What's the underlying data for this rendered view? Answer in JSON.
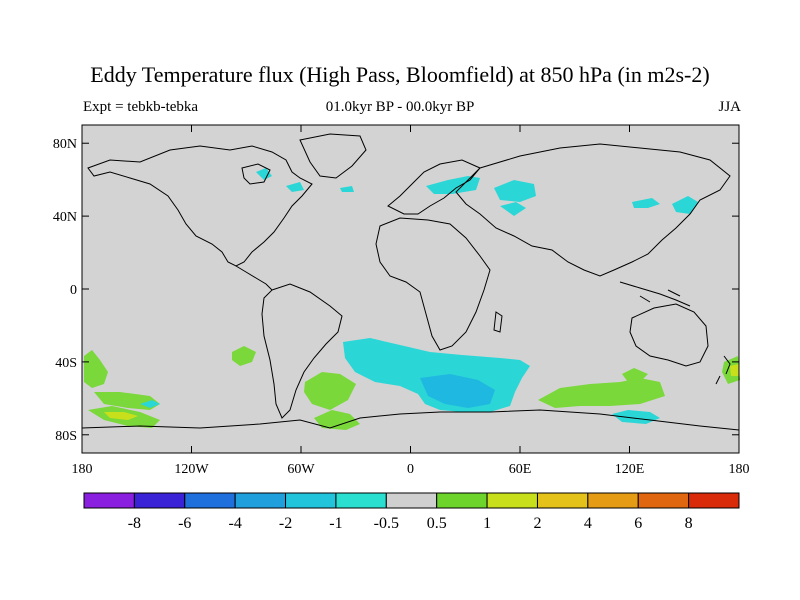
{
  "title": "Eddy Temperature flux (High Pass, Bloomfield) at 850 hPa (in m2s-2)",
  "subtitle_left": "Expt = tebkb-tebka",
  "subtitle_center": "01.0kyr BP - 00.0kyr BP",
  "subtitle_right": "JJA",
  "lat_ticks": [
    {
      "value": 80,
      "label": "80N"
    },
    {
      "value": 40,
      "label": "40N"
    },
    {
      "value": 0,
      "label": "0"
    },
    {
      "value": -40,
      "label": "40S"
    },
    {
      "value": -80,
      "label": "80S"
    }
  ],
  "lon_ticks": [
    {
      "value": -180,
      "label": "180"
    },
    {
      "value": -120,
      "label": "120W"
    },
    {
      "value": -60,
      "label": "60W"
    },
    {
      "value": 0,
      "label": "0"
    },
    {
      "value": 60,
      "label": "60E"
    },
    {
      "value": 120,
      "label": "120E"
    },
    {
      "value": 180,
      "label": "180"
    }
  ],
  "colorbar": {
    "colors": [
      "#8a1fe0",
      "#3a22d6",
      "#1f6fdd",
      "#1fa0dc",
      "#22c4dc",
      "#2adfcf",
      "#cfcfcf",
      "#6cd42a",
      "#c8e01c",
      "#e5c21a",
      "#e59c14",
      "#e0660f",
      "#d92a0a"
    ],
    "labels": [
      "-8",
      "-6",
      "-4",
      "-2",
      "-1",
      "-0.5",
      "0.5",
      "1",
      "2",
      "4",
      "6",
      "8"
    ]
  },
  "colors": {
    "land_ocean_background": "#d3d3d3",
    "negative_fill": "#2bd6d6",
    "negative_strong_fill": "#1fb8e0",
    "positive_fill": "#7ad83a",
    "positive_strong_fill": "#c8e01c"
  }
}
